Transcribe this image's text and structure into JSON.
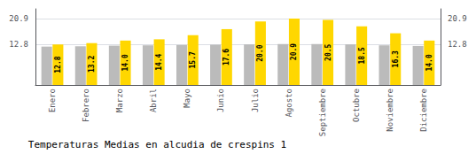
{
  "chart_data": {
    "type": "bar",
    "title": "Temperaturas Medias en alcudia de crespins 1",
    "categories": [
      "Enero",
      "Febrero",
      "Marzo",
      "Abril",
      "Mayo",
      "Junio",
      "Julio",
      "Agosto",
      "Septiembre",
      "Octubre",
      "Noviembre",
      "Diciembre"
    ],
    "series": [
      {
        "color": "#BBBBBB",
        "values": [
          12.1,
          12.2,
          12.4,
          12.5,
          12.6,
          12.7,
          12.8,
          12.9,
          12.9,
          12.8,
          12.5,
          12.3
        ]
      },
      {
        "color": "#FFD700",
        "values": [
          12.8,
          13.2,
          14.0,
          14.4,
          15.7,
          17.6,
          20.0,
          20.9,
          20.5,
          18.5,
          16.3,
          14.0
        ],
        "value_labels": [
          "12.8",
          "13.2",
          "14.0",
          "14.4",
          "15.7",
          "17.6",
          "20.0",
          "20.9",
          "20.5",
          "18.5",
          "16.3",
          "14.0"
        ],
        "data_labels": true
      }
    ],
    "ylim": [
      0,
      24.0
    ],
    "yticks": [
      12.8,
      20.9
    ],
    "y2lim": [
      0,
      24.0
    ],
    "y2ticks": [
      12.8,
      20.9
    ],
    "grid": true
  }
}
